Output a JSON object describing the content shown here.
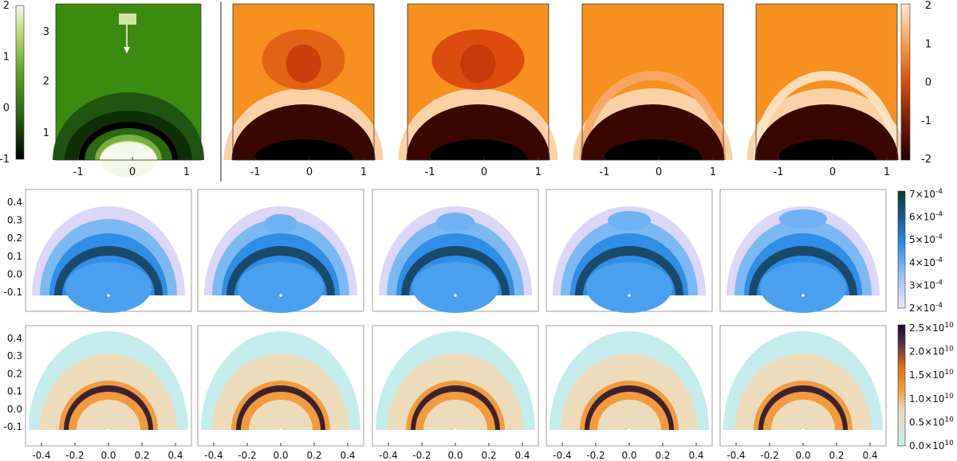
{
  "chart_data": [
    {
      "type": "heatmap",
      "panel": "top-left",
      "colormap": "green",
      "x_ticks": [
        "-1",
        "0",
        "1"
      ],
      "colorbar_ticks": [
        "2",
        "1",
        "0",
        "-1"
      ],
      "inset_ticks": [
        "3",
        "2",
        "1"
      ],
      "annotation": "white arrow pointing down toward the dome"
    },
    {
      "type": "heatmap",
      "panel": "top-row",
      "colormap": "orange",
      "panels": 4,
      "x_ticks": [
        "-1",
        "0",
        "1"
      ],
      "colorbar_ticks": [
        "2",
        "1",
        "0",
        "-1",
        "-2"
      ]
    },
    {
      "type": "heatmap",
      "panel": "middle-row",
      "colormap": "blue",
      "panels": 5,
      "y_ticks": [
        "0.4",
        "0.3",
        "0.2",
        "0.1",
        "0.0",
        "-0.1"
      ],
      "colorbar_ticks": [
        {
          "m": "7",
          "e": "-4"
        },
        {
          "m": "6",
          "e": "-4"
        },
        {
          "m": "5",
          "e": "-4"
        },
        {
          "m": "4",
          "e": "-4"
        },
        {
          "m": "3",
          "e": "-4"
        },
        {
          "m": "2",
          "e": "-4"
        }
      ]
    },
    {
      "type": "heatmap",
      "panel": "bottom-row",
      "colormap": "orange-teal",
      "panels": 5,
      "x_ticks": [
        "-0.4",
        "-0.2",
        "0.0",
        "0.2",
        "0.4"
      ],
      "y_ticks": [
        "0.4",
        "0.3",
        "0.2",
        "0.1",
        "0.0",
        "-0.1"
      ],
      "colorbar_ticks": [
        {
          "m": "2.5",
          "e": "10"
        },
        {
          "m": "2.0",
          "e": "10"
        },
        {
          "m": "1.5",
          "e": "10"
        },
        {
          "m": "1.0",
          "e": "10"
        },
        {
          "m": "0.5",
          "e": "10"
        },
        {
          "m": "0.0",
          "e": "10"
        }
      ]
    }
  ],
  "colors": {
    "green_bg": "#3d8a10",
    "orange_bg": "#f7901e",
    "blue_pale": "#dcd6f8",
    "teal_pale": "#c4ecec"
  }
}
